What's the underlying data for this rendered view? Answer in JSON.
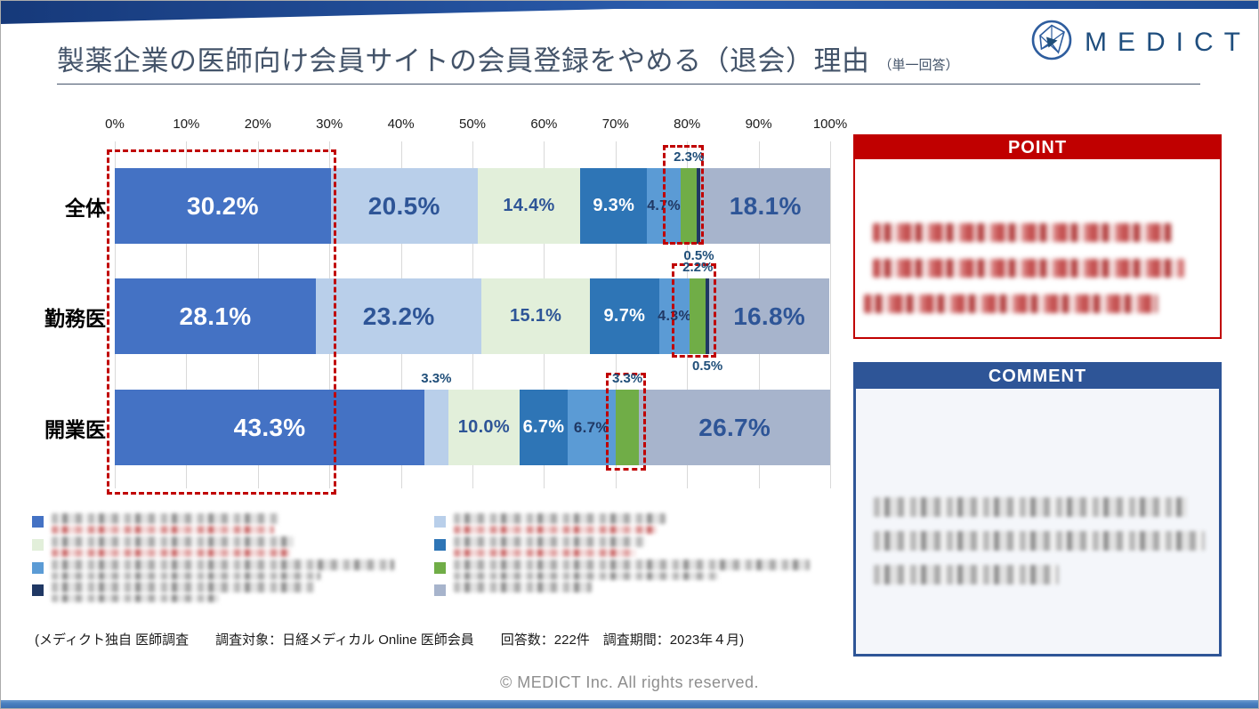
{
  "slide": {
    "title": "製薬企業の医師向け会員サイトの会員登録をやめる（退会）理由",
    "title_suffix": "（単一回答）",
    "logo_text": "MEDICT",
    "footer_note": "(メディクト独自 医師調査　　調査対象：日経メディカル Online 医師会員　　回答数：222件　調査期間：2023年４月)",
    "copyright": "© MEDICT Inc.  All rights reserved."
  },
  "axis_ticks": [
    "0%",
    "10%",
    "20%",
    "30%",
    "40%",
    "50%",
    "60%",
    "70%",
    "80%",
    "90%",
    "100%"
  ],
  "chart_data": {
    "type": "bar",
    "orientation": "horizontal-stacked",
    "unit": "%",
    "xlim": [
      0,
      100
    ],
    "grid": true,
    "categories": [
      "全体",
      "勤務医",
      "開業医"
    ],
    "legend_labels_redacted": true,
    "series": [
      {
        "name": "",
        "color": "#4472C4",
        "values": [
          30.2,
          28.1,
          43.3
        ]
      },
      {
        "name": "",
        "color": "#B9CFEA",
        "values": [
          20.5,
          23.2,
          3.3
        ]
      },
      {
        "name": "",
        "color": "#E2EFDA",
        "values": [
          14.4,
          15.1,
          10.0
        ]
      },
      {
        "name": "",
        "color": "#2E75B6",
        "values": [
          9.3,
          9.7,
          6.7
        ]
      },
      {
        "name": "",
        "color": "#5B9BD5",
        "values": [
          4.7,
          4.3,
          6.7
        ]
      },
      {
        "name": "",
        "color": "#70AD47",
        "values": [
          2.3,
          2.2,
          3.3
        ]
      },
      {
        "name": "",
        "color": "#203864",
        "values": [
          0.5,
          0.5,
          0
        ]
      },
      {
        "name": "",
        "color": "#A7B4CC",
        "values": [
          18.1,
          16.8,
          26.7
        ]
      }
    ],
    "value_label_style": [
      [
        {
          "pos": "in",
          "size": 28,
          "color": "#FFFFFF"
        },
        {
          "pos": "in",
          "size": 28,
          "color": "#2E5597"
        },
        {
          "pos": "in",
          "size": 20,
          "color": "#2E5597"
        },
        {
          "pos": "in",
          "size": 20,
          "color": "#FFFFFF"
        },
        {
          "pos": "in",
          "size": 16,
          "color": "#203864"
        },
        {
          "pos": "above",
          "size": 15,
          "color": "#1F4E79"
        },
        {
          "pos": "below",
          "size": 15,
          "color": "#1F4E79"
        },
        {
          "pos": "in",
          "size": 28,
          "color": "#2E5597"
        }
      ],
      [
        {
          "pos": "in",
          "size": 28,
          "color": "#FFFFFF"
        },
        {
          "pos": "in",
          "size": 28,
          "color": "#2E5597"
        },
        {
          "pos": "in",
          "size": 20,
          "color": "#2E5597"
        },
        {
          "pos": "in",
          "size": 20,
          "color": "#FFFFFF"
        },
        {
          "pos": "in",
          "size": 16,
          "color": "#203864"
        },
        {
          "pos": "above",
          "size": 15,
          "color": "#1F4E79"
        },
        {
          "pos": "below",
          "size": 15,
          "color": "#1F4E79"
        },
        {
          "pos": "in",
          "size": 28,
          "color": "#2E5597"
        }
      ],
      [
        {
          "pos": "in",
          "size": 28,
          "color": "#FFFFFF"
        },
        {
          "pos": "above",
          "size": 15,
          "color": "#1F4E79"
        },
        {
          "pos": "in",
          "size": 20,
          "color": "#2E5597"
        },
        {
          "pos": "in",
          "size": 20,
          "color": "#FFFFFF"
        },
        {
          "pos": "in",
          "size": 17,
          "color": "#203864"
        },
        {
          "pos": "above",
          "size": 15,
          "color": "#1F4E79"
        },
        {
          "pos": "none",
          "size": 0,
          "color": ""
        },
        {
          "pos": "in",
          "size": 28,
          "color": "#2E5597"
        }
      ]
    ]
  },
  "legend": {
    "labels_redacted": true,
    "columns": [
      [
        "#4472C4",
        "#E2EFDA",
        "#5B9BD5",
        "#203864"
      ],
      [
        "#B9CFEA",
        "#2E75B6",
        "#70AD47",
        "#A7B4CC"
      ]
    ]
  },
  "point_box": {
    "title": "POINT",
    "accent_color": "#C00000",
    "redacted_lines": 3
  },
  "comment_box": {
    "title": "COMMENT",
    "accent_color": "#2E5597",
    "redacted_lines": 3
  }
}
